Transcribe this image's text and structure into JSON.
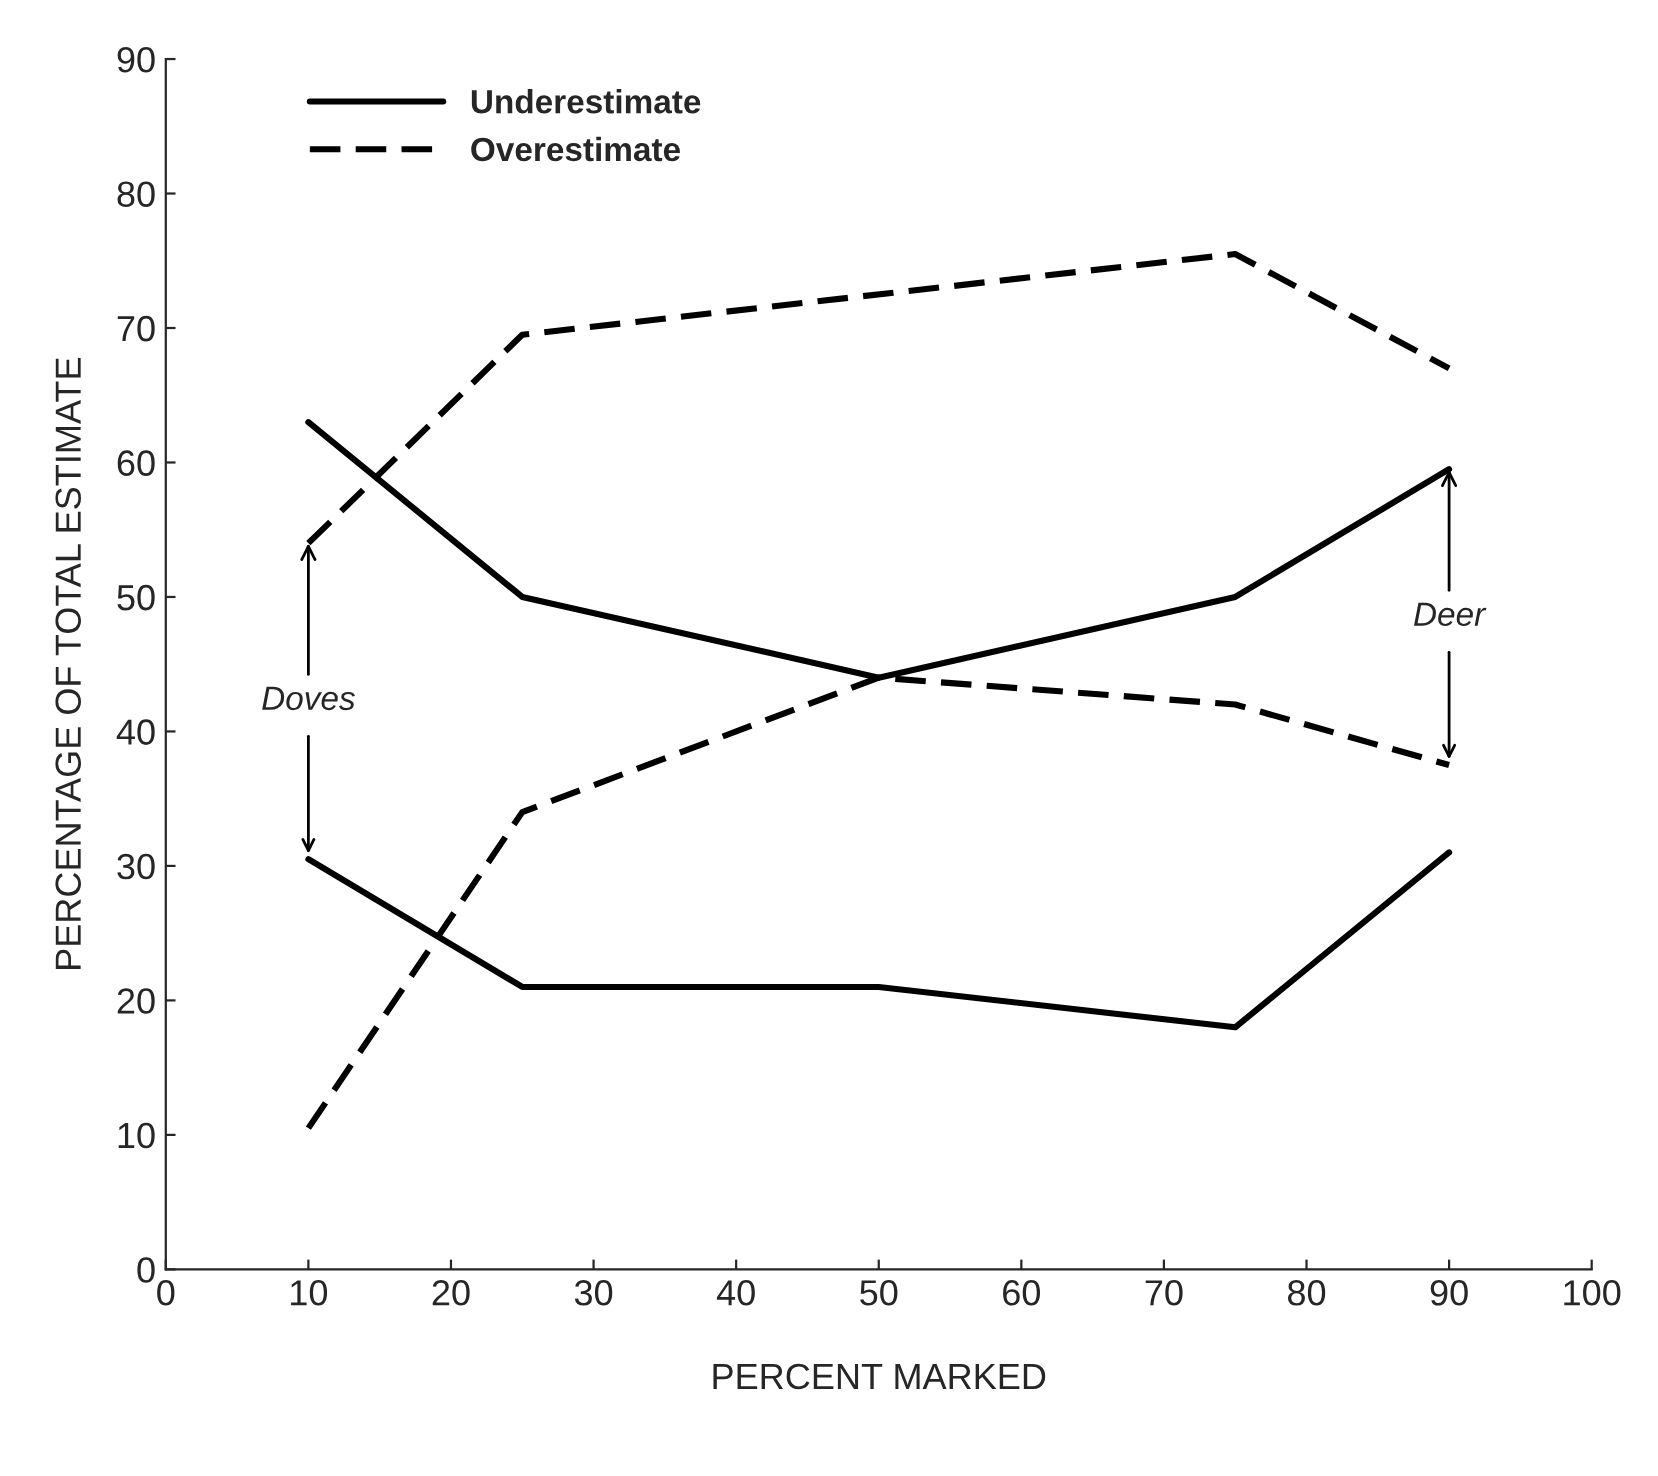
{
  "chart_data": {
    "type": "line",
    "xlabel": "PERCENT MARKED",
    "ylabel": "PERCENTAGE OF TOTAL ESTIMATE",
    "xlim": [
      0,
      100
    ],
    "xticks": [
      0,
      10,
      20,
      30,
      40,
      50,
      60,
      70,
      80,
      90,
      100
    ],
    "ylim": [
      0,
      90
    ],
    "yticks": [
      0,
      10,
      20,
      30,
      40,
      50,
      60,
      70,
      80,
      90
    ],
    "grid": false,
    "legend": "top left",
    "marker": "none",
    "series": [
      {
        "name": "Underestimate",
        "color": "#000000",
        "line_style": "solid",
        "x": [
          10,
          25,
          50,
          75,
          90
        ],
        "values": [
          30.5,
          21,
          21,
          18,
          31
        ]
      },
      {
        "name": "Overestimate",
        "color": "#000000",
        "line_style": "dashed",
        "x": [
          10,
          25,
          75,
          90
        ],
        "values": [
          54,
          69.5,
          75.5,
          67
        ]
      },
      {
        "color": "#000000",
        "line_style": "solid",
        "x": [
          10,
          25,
          50,
          75,
          90
        ],
        "values": [
          63,
          50,
          44,
          50,
          59.5
        ]
      },
      {
        "color": "#000000",
        "line_style": "dashed",
        "x": [
          10,
          25,
          50,
          75,
          90
        ],
        "values": [
          10.5,
          34,
          44,
          42,
          37.5
        ]
      }
    ],
    "annotations": [
      {
        "text": "Doves",
        "x": 10,
        "y": 54
      },
      {
        "text": "Deer",
        "x": 90,
        "y": 59.5
      }
    ]
  }
}
